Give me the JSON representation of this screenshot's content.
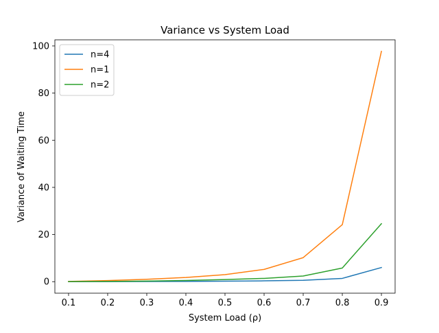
{
  "chart_data": {
    "type": "line",
    "title": "Variance vs System Load",
    "xlabel": "System Load (ρ)",
    "ylabel": "Variance of Waiting Time",
    "x": [
      0.1,
      0.2,
      0.3,
      0.4,
      0.5,
      0.6,
      0.7,
      0.8,
      0.9
    ],
    "xlim": [
      0.065,
      0.935
    ],
    "ylim": [
      -4.88,
      102.6
    ],
    "xticks": [
      "0.1",
      "0.2",
      "0.3",
      "0.4",
      "0.5",
      "0.6",
      "0.7",
      "0.8",
      "0.9"
    ],
    "yticks": [
      "0",
      "20",
      "40",
      "60",
      "80",
      "100"
    ],
    "grid": false,
    "legend_position": "top-left",
    "series": [
      {
        "name": "n=4",
        "color": "#1f77b4",
        "values": [
          0.01,
          0.03,
          0.06,
          0.11,
          0.2,
          0.35,
          0.6,
          1.4,
          6.0
        ]
      },
      {
        "name": "n=1",
        "color": "#ff7f0e",
        "values": [
          0.12,
          0.48,
          1.0,
          1.8,
          3.0,
          5.2,
          10.2,
          24.2,
          97.7
        ]
      },
      {
        "name": "n=2",
        "color": "#2ca02c",
        "values": [
          0.03,
          0.12,
          0.26,
          0.5,
          0.9,
          1.4,
          2.4,
          5.8,
          24.6
        ]
      }
    ]
  }
}
